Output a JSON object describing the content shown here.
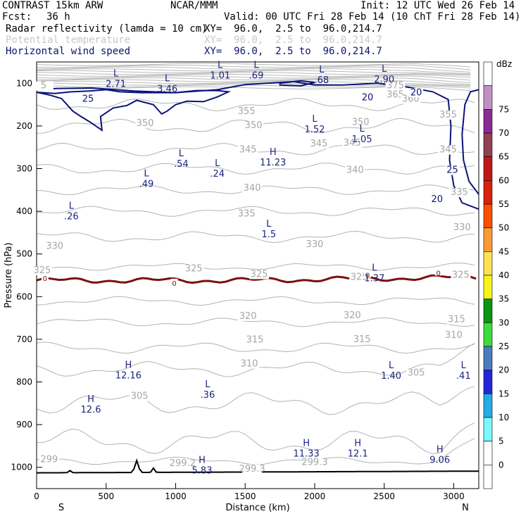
{
  "header": {
    "model": "CONTRAST 15km ARW",
    "org": "NCAR/MMM",
    "init": "Init: 12 UTC Wed 26 Feb 14",
    "fcst_label": "Fcst:",
    "fcst_value": "36 h",
    "valid": "Valid: 00 UTC Fri 28 Feb 14 (10 ChT Fri 28 Feb 14)"
  },
  "fields": [
    {
      "name": "Radar reflectivity (lamda = 10 cm)",
      "xy": "XY=  96.0,  2.5 to  96.0,214.7",
      "style": "black"
    },
    {
      "name": "Potential temperature",
      "xy": "XY=  96.0,  2.5 to  96.0,214.7",
      "style": "faint"
    },
    {
      "name": "Horizontal wind speed",
      "xy": "XY=  96.0,  2.5 to  96.0,214.7",
      "style": "dark"
    }
  ],
  "chart_data": {
    "type": "contour",
    "xlabel": "Distance (km)",
    "ylabel": "Pressure (hPa)",
    "xlim": [
      0,
      3180
    ],
    "ylim": [
      1050,
      50
    ],
    "x_ticks": [
      0,
      500,
      1000,
      1500,
      2000,
      2500,
      3000
    ],
    "y_ticks": [
      100,
      200,
      300,
      400,
      500,
      600,
      700,
      800,
      900,
      1000
    ],
    "left_end_label": "S",
    "right_end_label": "N",
    "theta_labels": [
      {
        "x": 50,
        "p": 112,
        "t": "5"
      },
      {
        "x": 2580,
        "p": 112,
        "t": "375"
      },
      {
        "x": 2580,
        "p": 133,
        "t": "365"
      },
      {
        "x": 2690,
        "p": 143,
        "t": "360"
      },
      {
        "x": 1510,
        "p": 172,
        "t": "355"
      },
      {
        "x": 2960,
        "p": 180,
        "t": "355"
      },
      {
        "x": 780,
        "p": 200,
        "t": "350"
      },
      {
        "x": 1560,
        "p": 205,
        "t": "350"
      },
      {
        "x": 2330,
        "p": 198,
        "t": "350"
      },
      {
        "x": 1520,
        "p": 262,
        "t": "345"
      },
      {
        "x": 2030,
        "p": 248,
        "t": "345"
      },
      {
        "x": 2270,
        "p": 246,
        "t": "345"
      },
      {
        "x": 2960,
        "p": 262,
        "t": "345"
      },
      {
        "x": 2290,
        "p": 310,
        "t": "340"
      },
      {
        "x": 1550,
        "p": 352,
        "t": "340"
      },
      {
        "x": 3040,
        "p": 362,
        "t": "335"
      },
      {
        "x": 1510,
        "p": 412,
        "t": "335"
      },
      {
        "x": 3060,
        "p": 444,
        "t": "330"
      },
      {
        "x": 130,
        "p": 488,
        "t": "330"
      },
      {
        "x": 2000,
        "p": 484,
        "t": "330"
      },
      {
        "x": 40,
        "p": 545,
        "t": "325"
      },
      {
        "x": 1130,
        "p": 541,
        "t": "325"
      },
      {
        "x": 1600,
        "p": 554,
        "t": "325"
      },
      {
        "x": 2320,
        "p": 561,
        "t": "325"
      },
      {
        "x": 3050,
        "p": 556,
        "t": "325"
      },
      {
        "x": 1520,
        "p": 652,
        "t": "320"
      },
      {
        "x": 2270,
        "p": 651,
        "t": "320"
      },
      {
        "x": 3020,
        "p": 660,
        "t": "315"
      },
      {
        "x": 1570,
        "p": 708,
        "t": "315"
      },
      {
        "x": 2340,
        "p": 707,
        "t": "315"
      },
      {
        "x": 3000,
        "p": 697,
        "t": "310"
      },
      {
        "x": 1530,
        "p": 764,
        "t": "310"
      },
      {
        "x": 2730,
        "p": 785,
        "t": "305"
      },
      {
        "x": 740,
        "p": 840,
        "t": "305"
      },
      {
        "x": 90,
        "p": 988,
        "t": "299"
      },
      {
        "x": 1550,
        "p": 1010,
        "t": "299.3"
      },
      {
        "x": 2000,
        "p": 995,
        "t": "299.3"
      },
      {
        "x": 1050,
        "p": 997,
        "t": "299.2"
      }
    ],
    "wind_labels": [
      {
        "x": 370,
        "p": 143,
        "t": "25"
      },
      {
        "x": 2380,
        "p": 140,
        "t": "20"
      },
      {
        "x": 2730,
        "p": 128,
        "t": "20"
      },
      {
        "x": 2990,
        "p": 310,
        "t": "25"
      },
      {
        "x": 2880,
        "p": 378,
        "t": "20"
      }
    ],
    "extrema": [
      {
        "x": 570,
        "p": 84,
        "k": "L",
        "v": "2.71"
      },
      {
        "x": 940,
        "p": 95,
        "k": "L",
        "v": "3.46"
      },
      {
        "x": 1320,
        "p": 64,
        "k": "L",
        "v": "1.01"
      },
      {
        "x": 1580,
        "p": 64,
        "k": "L",
        "v": ".69"
      },
      {
        "x": 2050,
        "p": 75,
        "k": "L",
        "v": ".68"
      },
      {
        "x": 2500,
        "p": 73,
        "k": "L",
        "v": "2.90"
      },
      {
        "x": 2000,
        "p": 190,
        "k": "L",
        "v": "1.52"
      },
      {
        "x": 2340,
        "p": 213,
        "k": "L",
        "v": "1.05"
      },
      {
        "x": 1040,
        "p": 271,
        "k": "L",
        "v": ".54"
      },
      {
        "x": 1300,
        "p": 294,
        "k": "L",
        "v": ".24"
      },
      {
        "x": 1700,
        "p": 268,
        "k": "H",
        "v": "11.23"
      },
      {
        "x": 790,
        "p": 318,
        "k": "L",
        "v": ".49"
      },
      {
        "x": 250,
        "p": 394,
        "k": "L",
        "v": ".26"
      },
      {
        "x": 1670,
        "p": 436,
        "k": "L",
        "v": "1.5"
      },
      {
        "x": 2430,
        "p": 539,
        "k": "L",
        "v": "1.37"
      },
      {
        "x": 660,
        "p": 767,
        "k": "H",
        "v": "12.16"
      },
      {
        "x": 1230,
        "p": 812,
        "k": "L",
        "v": ".36"
      },
      {
        "x": 390,
        "p": 847,
        "k": "H",
        "v": "12.6"
      },
      {
        "x": 2550,
        "p": 768,
        "k": "L",
        "v": "1.40"
      },
      {
        "x": 3070,
        "p": 768,
        "k": "L",
        "v": ".41"
      },
      {
        "x": 1940,
        "p": 950,
        "k": "H",
        "v": "11.33"
      },
      {
        "x": 2310,
        "p": 950,
        "k": "H",
        "v": "12.1"
      },
      {
        "x": 2900,
        "p": 965,
        "k": "H",
        "v": "9.06"
      },
      {
        "x": 1190,
        "p": 990,
        "k": "H",
        "v": "5.83"
      }
    ],
    "zero_dbz_labels": [
      {
        "x": 60,
        "p": 557,
        "t": "0"
      },
      {
        "x": 990,
        "p": 568,
        "t": "0"
      },
      {
        "x": 2380,
        "p": 549,
        "t": "0"
      },
      {
        "x": 2890,
        "p": 544,
        "t": "0"
      }
    ],
    "colorbar": {
      "unit": "dBz",
      "levels": [
        75,
        70,
        65,
        60,
        55,
        50,
        45,
        40,
        35,
        30,
        25,
        20,
        15,
        10,
        5,
        0
      ],
      "colors": [
        "#ffffff",
        "#c18fc5",
        "#8b2c96",
        "#924052",
        "#c01818",
        "#d8210e",
        "#fb4f00",
        "#fb9a34",
        "#fde153",
        "#f5f51c",
        "#0c9510",
        "#3ddc3d",
        "#4b7cbd",
        "#2525d8",
        "#25abe8",
        "#7bf9fd",
        "#ffffff",
        "#ffffff"
      ]
    }
  }
}
